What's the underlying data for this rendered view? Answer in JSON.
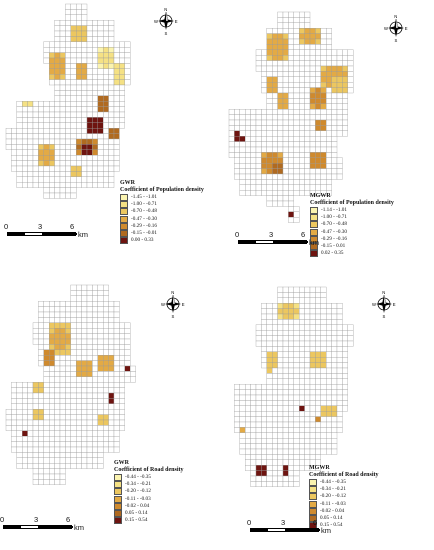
{
  "panels": [
    {
      "id": "gwr-population",
      "model": "GWR",
      "title": "Coefficient of Population density",
      "classes": [
        {
          "label": "-1.45 - -1.01",
          "color": "#fbf4b0"
        },
        {
          "label": "-1.00 - -0.71",
          "color": "#f5e184"
        },
        {
          "label": "-0.70 - -0.48",
          "color": "#ecc760"
        },
        {
          "label": "-0.47 - -0.30",
          "color": "#e3aa45"
        },
        {
          "label": "-0.29 - -0.16",
          "color": "#cf8a2e"
        },
        {
          "label": "-0.15 - -0.01",
          "color": "#b06a20"
        },
        {
          "label": "0.00 - 0.33",
          "color": "#6e1410"
        }
      ]
    },
    {
      "id": "mgwr-population",
      "model": "MGWR",
      "title": "Coefficient of Population density",
      "classes": [
        {
          "label": "-1.14 - -1.01",
          "color": "#fbf4b0"
        },
        {
          "label": "-1.00 - -0.71",
          "color": "#f5e184"
        },
        {
          "label": "-0.70 - -0.48",
          "color": "#ecc760"
        },
        {
          "label": "-0.47 - -0.30",
          "color": "#e3aa45"
        },
        {
          "label": "-0.29 - -0.16",
          "color": "#cf8a2e"
        },
        {
          "label": "-0.15 - 0.01",
          "color": "#b06a20"
        },
        {
          "label": "0.02 - 0.35",
          "color": "#6e1410"
        }
      ]
    },
    {
      "id": "gwr-road",
      "model": "GWR",
      "title": "Coefficient of Road density",
      "classes": [
        {
          "label": "-0.44 - -0.35",
          "color": "#fbf4b0"
        },
        {
          "label": "-0.34 - -0.21",
          "color": "#f5e184"
        },
        {
          "label": "-0.20 - -0.12",
          "color": "#ecc760"
        },
        {
          "label": "-0.11 - -0.03",
          "color": "#e3aa45"
        },
        {
          "label": "-0.02 - 0.04",
          "color": "#cf8a2e"
        },
        {
          "label": "0.05 - 0.14",
          "color": "#b06a20"
        },
        {
          "label": "0.15 - 0.54",
          "color": "#6e1410"
        }
      ]
    },
    {
      "id": "mgwr-road",
      "model": "MGWR",
      "title": "Coefficient of Road density",
      "classes": [
        {
          "label": "-0.44 - -0.35",
          "color": "#fbf4b0"
        },
        {
          "label": "-0.34 - -0.21",
          "color": "#f5e184"
        },
        {
          "label": "-0.20 - -0.12",
          "color": "#ecc760"
        },
        {
          "label": "-0.11 - -0.03",
          "color": "#e3aa45"
        },
        {
          "label": "-0.02 - 0.04",
          "color": "#cf8a2e"
        },
        {
          "label": "0.05 - 0.14",
          "color": "#b06a20"
        },
        {
          "label": "0.15 - 0.54",
          "color": "#6e1410"
        }
      ]
    }
  ],
  "scalebar": {
    "ticks": [
      "0",
      "3",
      "6"
    ],
    "unit": "km"
  },
  "north_arrow": {
    "n": "N",
    "s": "S",
    "e": "E",
    "w": "W",
    "icon": "compass-rose-icon"
  }
}
